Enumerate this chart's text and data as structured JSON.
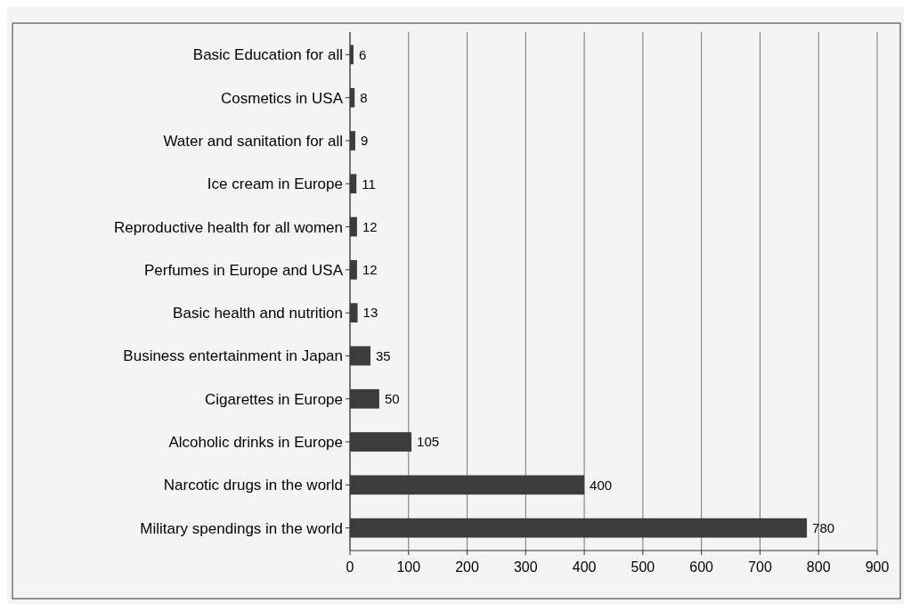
{
  "chart_data": {
    "type": "bar",
    "orientation": "horizontal",
    "categories": [
      "Basic Education for all",
      "Cosmetics in USA",
      "Water and sanitation for all",
      "Ice cream in Europe",
      "Reproductive health for all women",
      "Perfumes in Europe and USA",
      "Basic health and nutrition",
      "Business entertainment in Japan",
      "Cigarettes in Europe",
      "Alcoholic drinks in Europe",
      "Narcotic drugs in the world",
      "Military spendings in the world"
    ],
    "values": [
      6,
      8,
      9,
      11,
      12,
      12,
      13,
      35,
      50,
      105,
      400,
      780
    ],
    "color": "#3c3c3c",
    "xlim": [
      0,
      900
    ],
    "xticks": [
      0,
      100,
      200,
      300,
      400,
      500,
      600,
      700,
      800,
      900
    ],
    "grid": "x",
    "data_labels": true
  }
}
